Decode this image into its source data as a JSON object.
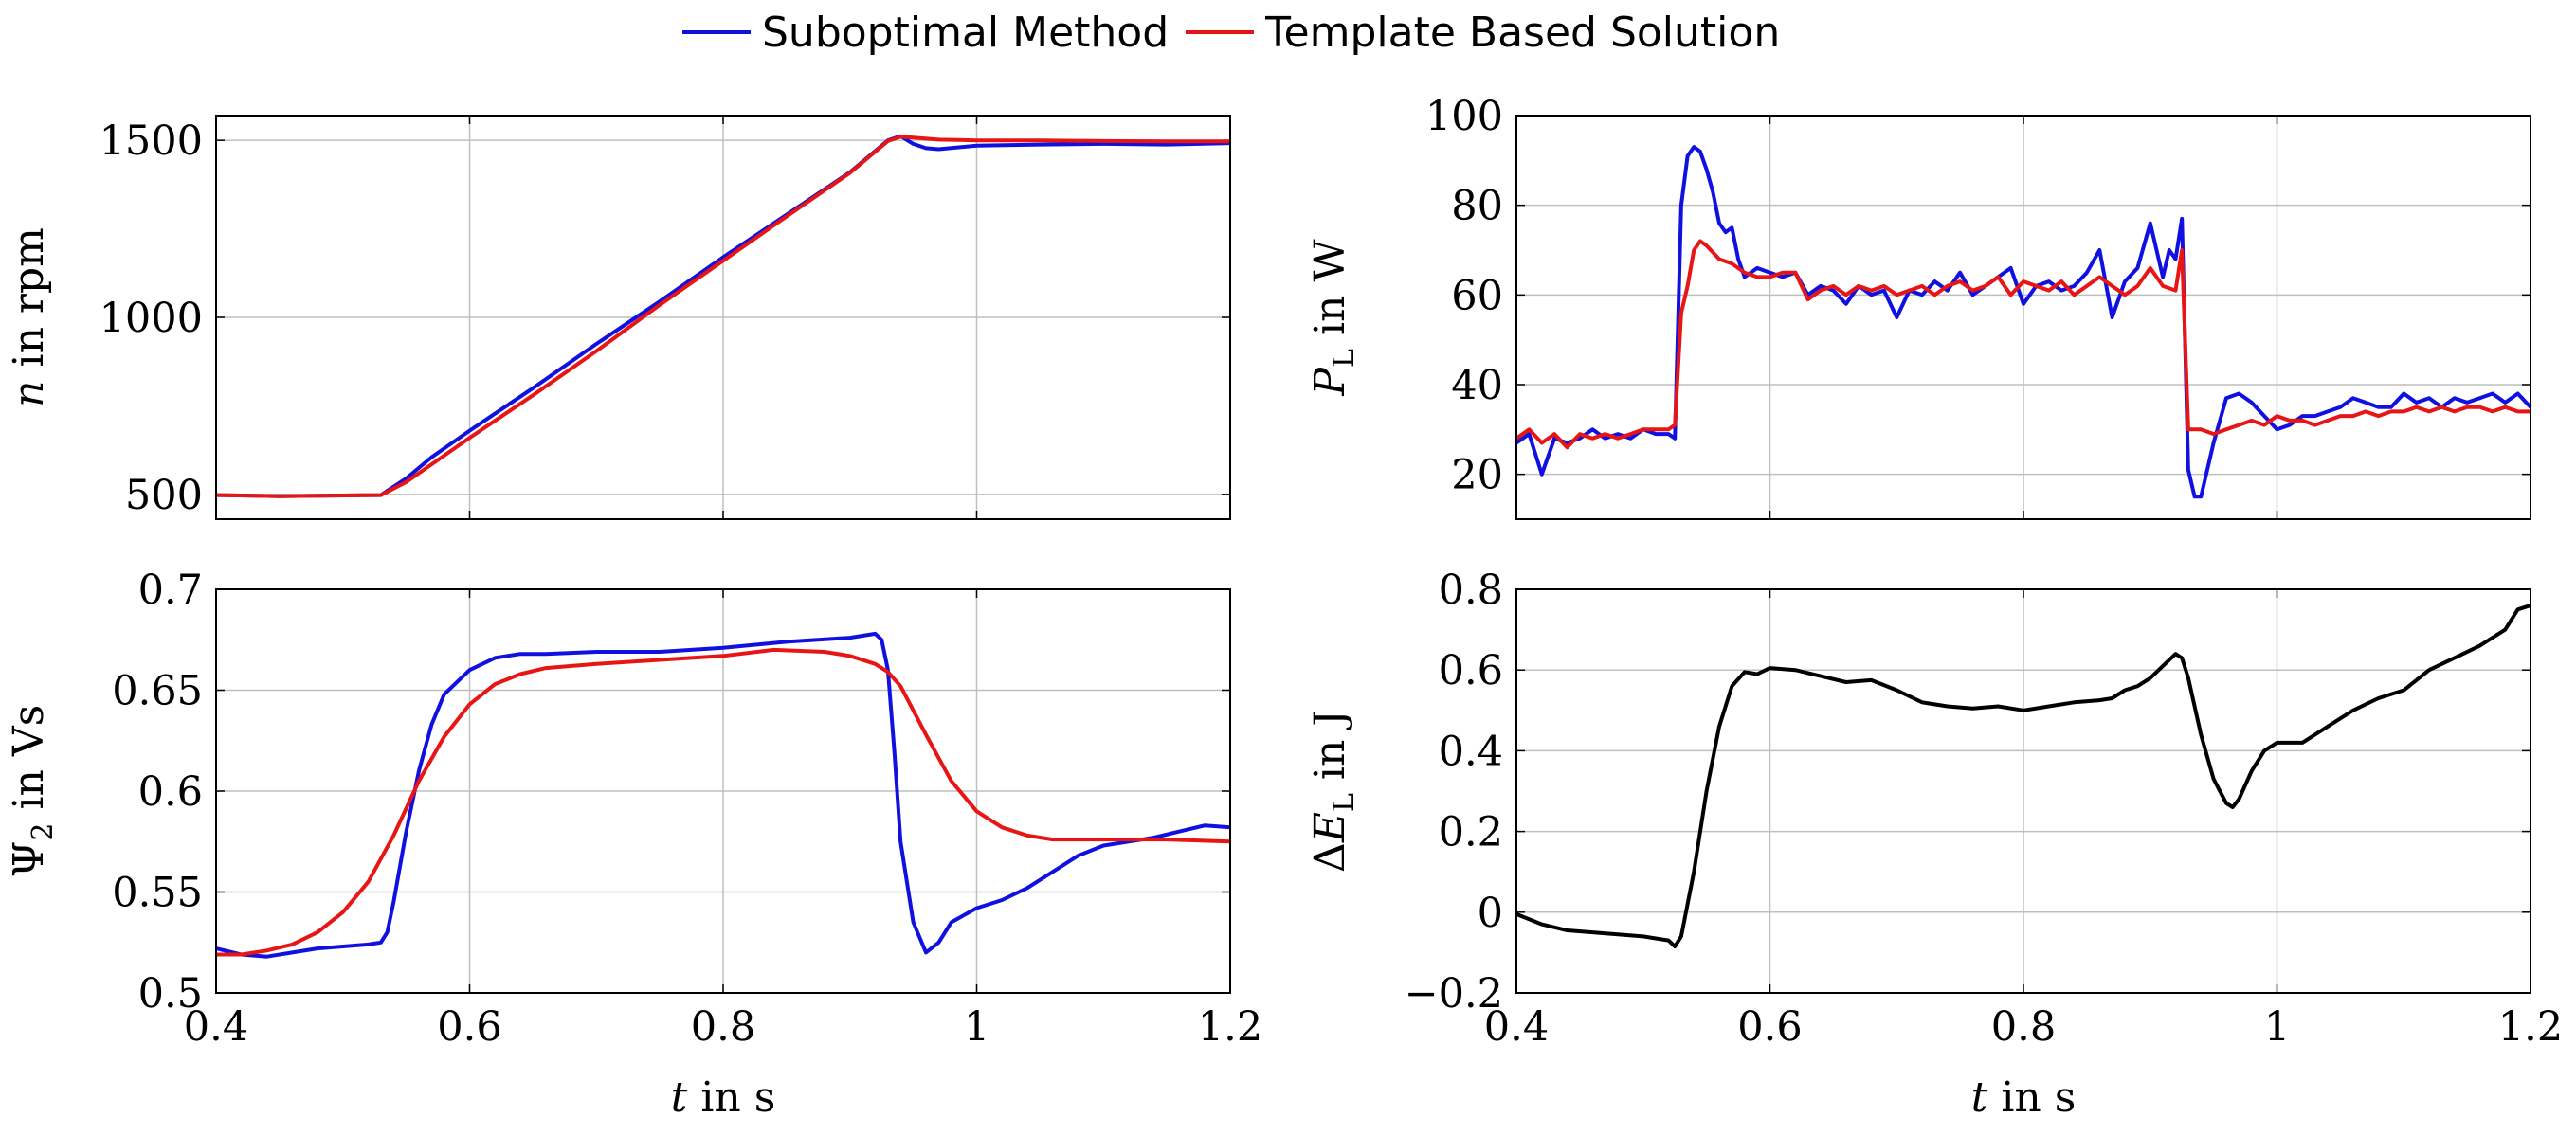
{
  "legend": {
    "series_a": "Suboptimal Method",
    "series_b": "Template Based Solution"
  },
  "colors": {
    "series_a": "#1010e0",
    "series_b": "#e81515",
    "single": "#000000",
    "grid": "#bfbfbf"
  },
  "chart_data": [
    {
      "id": "speed",
      "type": "line",
      "ylabel_parts": [
        "n",
        " in rpm"
      ],
      "xlabel": "",
      "xlim": [
        0.4,
        1.2
      ],
      "ylim": [
        430,
        1570
      ],
      "xticks": [
        0.4,
        0.6,
        0.8,
        1.0,
        1.2
      ],
      "yticks": [
        500,
        1000,
        1500
      ],
      "ytick_labels": [
        "500",
        "1000",
        "1500"
      ],
      "show_xtick_labels": false,
      "series": [
        {
          "name": "Suboptimal Method",
          "color_key": "series_a",
          "x": [
            0.4,
            0.45,
            0.5,
            0.53,
            0.55,
            0.57,
            0.6,
            0.65,
            0.7,
            0.75,
            0.8,
            0.85,
            0.9,
            0.93,
            0.94,
            0.95,
            0.96,
            0.97,
            1.0,
            1.05,
            1.1,
            1.15,
            1.2
          ],
          "y": [
            498,
            495,
            497,
            498,
            545,
            605,
            680,
            800,
            925,
            1045,
            1170,
            1290,
            1410,
            1500,
            1512,
            1490,
            1478,
            1475,
            1485,
            1488,
            1490,
            1488,
            1492
          ]
        },
        {
          "name": "Template Based Solution",
          "color_key": "series_b",
          "x": [
            0.4,
            0.45,
            0.5,
            0.53,
            0.55,
            0.57,
            0.6,
            0.65,
            0.7,
            0.75,
            0.8,
            0.85,
            0.9,
            0.93,
            0.94,
            0.95,
            0.97,
            1.0,
            1.05,
            1.1,
            1.15,
            1.2
          ],
          "y": [
            498,
            495,
            497,
            498,
            535,
            585,
            660,
            780,
            905,
            1035,
            1160,
            1285,
            1408,
            1498,
            1510,
            1508,
            1502,
            1500,
            1500,
            1498,
            1497,
            1497
          ]
        }
      ]
    },
    {
      "id": "loss-power",
      "type": "line",
      "ylabel_parts": [
        "P",
        "L",
        " in W"
      ],
      "xlabel": "",
      "xlim": [
        0.4,
        1.2
      ],
      "ylim": [
        10,
        100
      ],
      "xticks": [
        0.4,
        0.6,
        0.8,
        1.0,
        1.2
      ],
      "yticks": [
        20,
        40,
        60,
        80,
        100
      ],
      "ytick_labels": [
        "20",
        "40",
        "60",
        "80",
        "100"
      ],
      "show_xtick_labels": false,
      "series": [
        {
          "name": "Suboptimal Method",
          "color_key": "series_a",
          "x": [
            0.4,
            0.41,
            0.42,
            0.43,
            0.44,
            0.45,
            0.46,
            0.47,
            0.48,
            0.49,
            0.5,
            0.51,
            0.52,
            0.525,
            0.53,
            0.535,
            0.54,
            0.545,
            0.55,
            0.555,
            0.56,
            0.565,
            0.57,
            0.575,
            0.58,
            0.59,
            0.6,
            0.61,
            0.62,
            0.63,
            0.64,
            0.65,
            0.66,
            0.67,
            0.68,
            0.69,
            0.7,
            0.71,
            0.72,
            0.73,
            0.74,
            0.75,
            0.76,
            0.77,
            0.78,
            0.79,
            0.8,
            0.81,
            0.82,
            0.83,
            0.84,
            0.85,
            0.86,
            0.87,
            0.88,
            0.89,
            0.9,
            0.91,
            0.915,
            0.92,
            0.925,
            0.93,
            0.935,
            0.94,
            0.95,
            0.96,
            0.97,
            0.98,
            0.99,
            1.0,
            1.01,
            1.02,
            1.03,
            1.04,
            1.05,
            1.06,
            1.07,
            1.08,
            1.09,
            1.1,
            1.11,
            1.12,
            1.13,
            1.14,
            1.15,
            1.16,
            1.17,
            1.18,
            1.19,
            1.2
          ],
          "y": [
            27,
            29,
            20,
            28,
            27,
            28,
            30,
            28,
            29,
            28,
            30,
            29,
            29,
            28,
            80,
            91,
            93,
            92,
            88,
            83,
            76,
            74,
            75,
            68,
            64,
            66,
            65,
            64,
            65,
            60,
            62,
            61,
            58,
            62,
            60,
            61,
            55,
            61,
            60,
            63,
            61,
            65,
            60,
            62,
            64,
            66,
            58,
            62,
            63,
            61,
            62,
            65,
            70,
            55,
            63,
            66,
            76,
            64,
            70,
            68,
            77,
            21,
            15,
            15,
            27,
            37,
            38,
            36,
            33,
            30,
            31,
            33,
            33,
            34,
            35,
            37,
            36,
            35,
            35,
            38,
            36,
            37,
            35,
            37,
            36,
            37,
            38,
            36,
            38,
            35
          ]
        },
        {
          "name": "Template Based Solution",
          "color_key": "series_b",
          "x": [
            0.4,
            0.41,
            0.42,
            0.43,
            0.44,
            0.45,
            0.46,
            0.47,
            0.48,
            0.49,
            0.5,
            0.51,
            0.52,
            0.525,
            0.53,
            0.535,
            0.54,
            0.545,
            0.55,
            0.56,
            0.57,
            0.58,
            0.59,
            0.6,
            0.61,
            0.62,
            0.63,
            0.64,
            0.65,
            0.66,
            0.67,
            0.68,
            0.69,
            0.7,
            0.71,
            0.72,
            0.73,
            0.74,
            0.75,
            0.76,
            0.77,
            0.78,
            0.79,
            0.8,
            0.81,
            0.82,
            0.83,
            0.84,
            0.85,
            0.86,
            0.87,
            0.88,
            0.89,
            0.9,
            0.91,
            0.92,
            0.925,
            0.93,
            0.94,
            0.95,
            0.96,
            0.97,
            0.98,
            0.99,
            1.0,
            1.01,
            1.02,
            1.03,
            1.04,
            1.05,
            1.06,
            1.07,
            1.08,
            1.09,
            1.1,
            1.11,
            1.12,
            1.13,
            1.14,
            1.15,
            1.16,
            1.17,
            1.18,
            1.19,
            1.2
          ],
          "y": [
            28,
            30,
            27,
            29,
            26,
            29,
            28,
            29,
            28,
            29,
            30,
            30,
            30,
            31,
            56,
            62,
            70,
            72,
            71,
            68,
            67,
            65,
            64,
            64,
            65,
            65,
            59,
            61,
            62,
            60,
            62,
            61,
            62,
            60,
            61,
            62,
            60,
            62,
            63,
            61,
            62,
            64,
            60,
            63,
            62,
            61,
            63,
            60,
            62,
            64,
            62,
            60,
            62,
            66,
            62,
            61,
            70,
            30,
            30,
            29,
            30,
            31,
            32,
            31,
            33,
            32,
            32,
            31,
            32,
            33,
            33,
            34,
            33,
            34,
            34,
            35,
            34,
            35,
            34,
            35,
            35,
            34,
            35,
            34,
            34
          ]
        }
      ]
    },
    {
      "id": "flux",
      "type": "line",
      "ylabel_parts": [
        "Ψ",
        "2",
        " in Vs"
      ],
      "xlabel": "t in s",
      "xlim": [
        0.4,
        1.2
      ],
      "ylim": [
        0.5,
        0.7
      ],
      "xticks": [
        0.4,
        0.6,
        0.8,
        1.0,
        1.2
      ],
      "xtick_labels": [
        "0.4",
        "0.6",
        "0.8",
        "1",
        "1.2"
      ],
      "yticks": [
        0.5,
        0.55,
        0.6,
        0.65,
        0.7
      ],
      "ytick_labels": [
        "0.5",
        "0.55",
        "0.6",
        "0.65",
        "0.7"
      ],
      "show_xtick_labels": true,
      "series": [
        {
          "name": "Suboptimal Method",
          "color_key": "series_a",
          "x": [
            0.4,
            0.42,
            0.44,
            0.46,
            0.48,
            0.5,
            0.52,
            0.53,
            0.535,
            0.54,
            0.55,
            0.56,
            0.57,
            0.58,
            0.6,
            0.62,
            0.64,
            0.66,
            0.7,
            0.75,
            0.8,
            0.85,
            0.9,
            0.91,
            0.92,
            0.925,
            0.93,
            0.935,
            0.94,
            0.95,
            0.96,
            0.97,
            0.98,
            1.0,
            1.02,
            1.04,
            1.06,
            1.08,
            1.1,
            1.12,
            1.14,
            1.16,
            1.18,
            1.2
          ],
          "y": [
            0.522,
            0.519,
            0.518,
            0.52,
            0.522,
            0.523,
            0.524,
            0.525,
            0.53,
            0.545,
            0.58,
            0.61,
            0.633,
            0.648,
            0.66,
            0.666,
            0.668,
            0.668,
            0.669,
            0.669,
            0.671,
            0.674,
            0.676,
            0.677,
            0.678,
            0.675,
            0.66,
            0.62,
            0.575,
            0.535,
            0.52,
            0.525,
            0.535,
            0.542,
            0.546,
            0.552,
            0.56,
            0.568,
            0.573,
            0.575,
            0.577,
            0.58,
            0.583,
            0.582
          ]
        },
        {
          "name": "Template Based Solution",
          "color_key": "series_b",
          "x": [
            0.4,
            0.42,
            0.44,
            0.46,
            0.48,
            0.5,
            0.52,
            0.54,
            0.56,
            0.58,
            0.6,
            0.62,
            0.64,
            0.66,
            0.7,
            0.75,
            0.8,
            0.84,
            0.88,
            0.9,
            0.92,
            0.93,
            0.94,
            0.95,
            0.96,
            0.98,
            1.0,
            1.02,
            1.04,
            1.06,
            1.08,
            1.1,
            1.15,
            1.2
          ],
          "y": [
            0.519,
            0.519,
            0.521,
            0.524,
            0.53,
            0.54,
            0.555,
            0.578,
            0.605,
            0.627,
            0.643,
            0.653,
            0.658,
            0.661,
            0.663,
            0.665,
            0.667,
            0.67,
            0.669,
            0.667,
            0.663,
            0.659,
            0.652,
            0.64,
            0.628,
            0.605,
            0.59,
            0.582,
            0.578,
            0.576,
            0.576,
            0.576,
            0.576,
            0.575
          ]
        }
      ]
    },
    {
      "id": "energy",
      "type": "line",
      "ylabel_parts": [
        "Δ",
        "E",
        "L",
        " in J"
      ],
      "xlabel": "t in s",
      "xlim": [
        0.4,
        1.2
      ],
      "ylim": [
        -0.2,
        0.8
      ],
      "xticks": [
        0.4,
        0.6,
        0.8,
        1.0,
        1.2
      ],
      "xtick_labels": [
        "0.4",
        "0.6",
        "0.8",
        "1",
        "1.2"
      ],
      "yticks": [
        -0.2,
        0,
        0.2,
        0.4,
        0.6,
        0.8
      ],
      "ytick_labels": [
        "−0.2",
        "0",
        "0.2",
        "0.4",
        "0.6",
        "0.8"
      ],
      "show_xtick_labels": true,
      "series": [
        {
          "name": "ΔE_L",
          "color_key": "single",
          "x": [
            0.4,
            0.42,
            0.44,
            0.46,
            0.48,
            0.5,
            0.51,
            0.52,
            0.525,
            0.53,
            0.54,
            0.55,
            0.56,
            0.57,
            0.58,
            0.59,
            0.6,
            0.62,
            0.64,
            0.66,
            0.68,
            0.7,
            0.72,
            0.74,
            0.76,
            0.78,
            0.8,
            0.82,
            0.84,
            0.86,
            0.87,
            0.88,
            0.89,
            0.9,
            0.91,
            0.92,
            0.925,
            0.93,
            0.94,
            0.95,
            0.96,
            0.965,
            0.97,
            0.98,
            0.99,
            1.0,
            1.02,
            1.04,
            1.06,
            1.08,
            1.1,
            1.12,
            1.14,
            1.16,
            1.18,
            1.19,
            1.2
          ],
          "y": [
            -0.005,
            -0.03,
            -0.045,
            -0.05,
            -0.055,
            -0.06,
            -0.065,
            -0.07,
            -0.085,
            -0.06,
            0.1,
            0.3,
            0.46,
            0.56,
            0.595,
            0.59,
            0.605,
            0.6,
            0.585,
            0.57,
            0.575,
            0.55,
            0.52,
            0.51,
            0.505,
            0.51,
            0.5,
            0.51,
            0.52,
            0.525,
            0.53,
            0.55,
            0.56,
            0.58,
            0.61,
            0.64,
            0.63,
            0.58,
            0.44,
            0.33,
            0.27,
            0.26,
            0.28,
            0.35,
            0.4,
            0.42,
            0.42,
            0.46,
            0.5,
            0.53,
            0.55,
            0.6,
            0.63,
            0.66,
            0.7,
            0.75,
            0.76
          ]
        }
      ]
    }
  ]
}
